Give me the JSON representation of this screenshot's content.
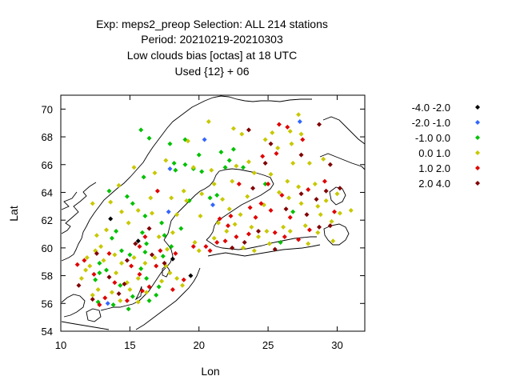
{
  "chart_data": {
    "type": "scatter",
    "title_lines": [
      "Exp: meps2_preop   Selection: ALL    214 stations",
      "Period: 20210219-20210303",
      "Low clouds bias [octas] at  18 UTC",
      "Used {12} + 06"
    ],
    "xlabel": "Lon",
    "ylabel": "Lat",
    "xlim": [
      10,
      32
    ],
    "ylim": [
      54,
      71
    ],
    "xticks": [
      10,
      15,
      20,
      25,
      30
    ],
    "yticks": [
      54,
      56,
      58,
      60,
      62,
      64,
      66,
      68,
      70
    ],
    "grid": false,
    "legend_position": "right",
    "series": [
      {
        "name": "-4.0 -2.0",
        "color": "#000000",
        "points": [
          [
            13.6,
            62.1
          ],
          [
            15.6,
            60.5
          ],
          [
            19.4,
            58.0
          ],
          [
            18.1,
            59.2
          ]
        ]
      },
      {
        "name": "-2.0 -1.0",
        "color": "#3366ff",
        "points": [
          [
            20.4,
            67.8
          ],
          [
            17.9,
            65.7
          ],
          [
            17.8,
            62.6
          ],
          [
            21.0,
            63.1
          ],
          [
            27.3,
            69.1
          ],
          [
            13.4,
            56.0
          ]
        ]
      },
      {
        "name": "-1.0 0.0",
        "color": "#00c000",
        "points": [
          [
            15.8,
            68.5
          ],
          [
            16.4,
            67.9
          ],
          [
            17.9,
            67.5
          ],
          [
            18.2,
            66.1
          ],
          [
            18.3,
            65.6
          ],
          [
            19.0,
            66.0
          ],
          [
            20.0,
            66.7
          ],
          [
            21.6,
            66.9
          ],
          [
            22.5,
            67.1
          ],
          [
            19.6,
            65.7
          ],
          [
            16.0,
            65.1
          ],
          [
            14.8,
            63.7
          ],
          [
            15.2,
            63.2
          ],
          [
            16.1,
            62.3
          ],
          [
            14.0,
            61.2
          ],
          [
            13.7,
            60.7
          ],
          [
            14.4,
            59.8
          ],
          [
            15.0,
            59.5
          ],
          [
            16.1,
            59.7
          ],
          [
            17.4,
            59.4
          ],
          [
            18.0,
            60.1
          ],
          [
            17.5,
            60.9
          ],
          [
            17.3,
            61.8
          ],
          [
            18.7,
            61.4
          ],
          [
            15.9,
            61.1
          ],
          [
            17.1,
            57.2
          ],
          [
            16.9,
            56.6
          ],
          [
            15.8,
            58.5
          ],
          [
            16.2,
            57.8
          ],
          [
            13.3,
            58.4
          ],
          [
            12.8,
            58.2
          ],
          [
            12.5,
            57.7
          ],
          [
            13.8,
            55.9
          ],
          [
            14.3,
            57.3
          ],
          [
            15.2,
            56.5
          ],
          [
            14.9,
            55.6
          ],
          [
            16.4,
            56.2
          ],
          [
            21.3,
            63.8
          ],
          [
            20.8,
            63.6
          ],
          [
            19.3,
            63.4
          ],
          [
            13.5,
            64.1
          ],
          [
            16.2,
            60.3
          ],
          [
            25.9,
            60.4
          ],
          [
            22.2,
            66.3
          ],
          [
            21.9,
            65.8
          ],
          [
            20.2,
            65.5
          ],
          [
            23.2,
            65.8
          ],
          [
            19.0,
            67.8
          ],
          [
            24.8,
            64.6
          ],
          [
            26.8,
            62.6
          ],
          [
            12.7,
            56.1
          ],
          [
            12.8,
            58.9
          ]
        ]
      },
      {
        "name": "0.0 1.0",
        "color": "#c8c800",
        "points": [
          [
            20.7,
            69.1
          ],
          [
            22.5,
            68.6
          ],
          [
            27.2,
            69.6
          ],
          [
            26.7,
            67.5
          ],
          [
            27.4,
            68.2
          ],
          [
            28.0,
            66.1
          ],
          [
            26.4,
            64.8
          ],
          [
            25.2,
            65.3
          ],
          [
            23.6,
            66.2
          ],
          [
            22.7,
            65.9
          ],
          [
            20.9,
            65.6
          ],
          [
            19.6,
            65.8
          ],
          [
            18.9,
            64.1
          ],
          [
            18.0,
            63.6
          ],
          [
            18.4,
            62.4
          ],
          [
            19.1,
            63.4
          ],
          [
            20.2,
            63.9
          ],
          [
            21.7,
            63.5
          ],
          [
            22.2,
            62.8
          ],
          [
            23.5,
            63.7
          ],
          [
            24.7,
            63.1
          ],
          [
            23.0,
            62.4
          ],
          [
            22.6,
            61.7
          ],
          [
            21.4,
            61.8
          ],
          [
            22.0,
            61.2
          ],
          [
            23.8,
            61.5
          ],
          [
            24.3,
            60.8
          ],
          [
            25.1,
            60.3
          ],
          [
            26.6,
            61.2
          ],
          [
            27.7,
            61.6
          ],
          [
            28.8,
            62.4
          ],
          [
            29.6,
            61.9
          ],
          [
            31.0,
            62.7
          ],
          [
            29.2,
            63.4
          ],
          [
            30.2,
            62.5
          ],
          [
            27.4,
            63.2
          ],
          [
            26.5,
            63.6
          ],
          [
            28.4,
            64.6
          ],
          [
            26.8,
            66.1
          ],
          [
            29.0,
            66.4
          ],
          [
            25.7,
            67.2
          ],
          [
            24.8,
            67.8
          ],
          [
            23.1,
            68.2
          ],
          [
            19.2,
            67.7
          ],
          [
            17.6,
            66.3
          ],
          [
            16.8,
            65.4
          ],
          [
            15.3,
            65.8
          ],
          [
            14.2,
            64.5
          ],
          [
            13.6,
            63.3
          ],
          [
            12.3,
            63.2
          ],
          [
            16.5,
            63.6
          ],
          [
            16.6,
            62.5
          ],
          [
            14.4,
            62.6
          ],
          [
            15.6,
            62.7
          ],
          [
            14.9,
            61.8
          ],
          [
            13.3,
            61.3
          ],
          [
            12.6,
            60.9
          ],
          [
            12.5,
            59.8
          ],
          [
            11.9,
            59.3
          ],
          [
            12.1,
            58.7
          ],
          [
            13.1,
            59.1
          ],
          [
            13.9,
            59.5
          ],
          [
            14.4,
            58.9
          ],
          [
            15.3,
            59.3
          ],
          [
            16.1,
            58.9
          ],
          [
            16.8,
            59.3
          ],
          [
            17.6,
            58.7
          ],
          [
            17.9,
            58.2
          ],
          [
            18.4,
            57.8
          ],
          [
            18.8,
            57.3
          ],
          [
            17.3,
            57.6
          ],
          [
            15.6,
            57.8
          ],
          [
            14.8,
            57.5
          ],
          [
            13.7,
            56.8
          ],
          [
            14.3,
            56.2
          ],
          [
            15.6,
            56.1
          ],
          [
            16.2,
            56.8
          ],
          [
            12.7,
            57.0
          ],
          [
            12.3,
            56.6
          ],
          [
            11.5,
            57.8
          ],
          [
            11.8,
            58.4
          ],
          [
            12.9,
            60.1
          ],
          [
            17.1,
            60.8
          ],
          [
            18.1,
            61.1
          ],
          [
            20.0,
            59.8
          ],
          [
            21.1,
            60.7
          ],
          [
            23.2,
            60.0
          ],
          [
            24.0,
            59.8
          ],
          [
            24.9,
            61.2
          ],
          [
            26.1,
            61.5
          ],
          [
            27.9,
            60.3
          ],
          [
            28.6,
            61.1
          ],
          [
            29.7,
            60.5
          ],
          [
            15.0,
            57.0
          ],
          [
            14.0,
            58.2
          ],
          [
            17.7,
            59.9
          ],
          [
            19.7,
            60.4
          ],
          [
            20.1,
            62.3
          ],
          [
            21.1,
            64.6
          ],
          [
            22.4,
            64.8
          ],
          [
            24.0,
            65.4
          ],
          [
            25.8,
            64.0
          ],
          [
            27.2,
            64.4
          ],
          [
            28.6,
            63.0
          ],
          [
            30.0,
            63.9
          ],
          [
            25.3,
            68.3
          ],
          [
            26.6,
            68.4
          ]
        ]
      },
      {
        "name": "1.0 2.0",
        "color": "#e00000",
        "points": [
          [
            25.8,
            68.9
          ],
          [
            26.4,
            68.7
          ],
          [
            27.5,
            67.8
          ],
          [
            24.6,
            66.6
          ],
          [
            25.6,
            66.8
          ],
          [
            22.9,
            64.6
          ],
          [
            24.5,
            63.2
          ],
          [
            25.2,
            62.7
          ],
          [
            24.1,
            62.2
          ],
          [
            23.6,
            61.0
          ],
          [
            22.7,
            60.8
          ],
          [
            21.9,
            60.5
          ],
          [
            21.3,
            60.4
          ],
          [
            20.5,
            60.1
          ],
          [
            20.8,
            59.8
          ],
          [
            21.5,
            62.1
          ],
          [
            22.3,
            62.3
          ],
          [
            26.2,
            60.8
          ],
          [
            27.2,
            60.6
          ],
          [
            25.5,
            61.1
          ],
          [
            26.0,
            63.8
          ],
          [
            27.9,
            64.2
          ],
          [
            29.1,
            64.8
          ],
          [
            17.0,
            64.1
          ],
          [
            16.1,
            60.8
          ],
          [
            15.7,
            60.1
          ],
          [
            16.9,
            58.7
          ],
          [
            17.2,
            59.8
          ],
          [
            18.3,
            59.6
          ],
          [
            15.7,
            58.1
          ],
          [
            15.1,
            58.7
          ],
          [
            16.4,
            57.2
          ],
          [
            15.9,
            56.9
          ],
          [
            14.8,
            56.2
          ],
          [
            13.9,
            57.5
          ],
          [
            13.2,
            56.4
          ],
          [
            12.8,
            55.9
          ],
          [
            13.5,
            59.6
          ],
          [
            11.7,
            59.1
          ],
          [
            12.4,
            58.1
          ],
          [
            11.2,
            58.8
          ],
          [
            18.1,
            57.0
          ],
          [
            18.9,
            57.7
          ],
          [
            19.6,
            60.1
          ],
          [
            28.0,
            61.3
          ],
          [
            29.8,
            62.6
          ],
          [
            25.0,
            64.6
          ],
          [
            26.6,
            62.2
          ],
          [
            23.7,
            62.9
          ],
          [
            22.1,
            61.6
          ]
        ]
      },
      {
        "name": "2.0 4.0",
        "color": "#800000",
        "points": [
          [
            23.6,
            68.5
          ],
          [
            25.2,
            67.5
          ],
          [
            27.4,
            66.7
          ],
          [
            28.7,
            68.9
          ],
          [
            29.5,
            66.0
          ],
          [
            30.2,
            64.3
          ],
          [
            29.2,
            64.1
          ],
          [
            28.5,
            63.5
          ],
          [
            29.5,
            61.6
          ],
          [
            28.7,
            61.5
          ],
          [
            24.8,
            66.1
          ],
          [
            24.3,
            61.2
          ],
          [
            23.3,
            60.4
          ],
          [
            22.4,
            60.0
          ],
          [
            23.9,
            64.3
          ],
          [
            16.6,
            59.5
          ],
          [
            14.8,
            59.1
          ],
          [
            13.5,
            57.9
          ],
          [
            14.6,
            57.4
          ],
          [
            14.2,
            56.7
          ],
          [
            12.3,
            56.3
          ],
          [
            11.3,
            57.3
          ],
          [
            12.6,
            59.6
          ],
          [
            17.5,
            58.9
          ],
          [
            15.4,
            60.3
          ],
          [
            16.4,
            61.4
          ],
          [
            26.3,
            62.8
          ],
          [
            27.8,
            62.4
          ],
          [
            25.5,
            59.9
          ],
          [
            27.4,
            63.9
          ]
        ]
      }
    ]
  }
}
